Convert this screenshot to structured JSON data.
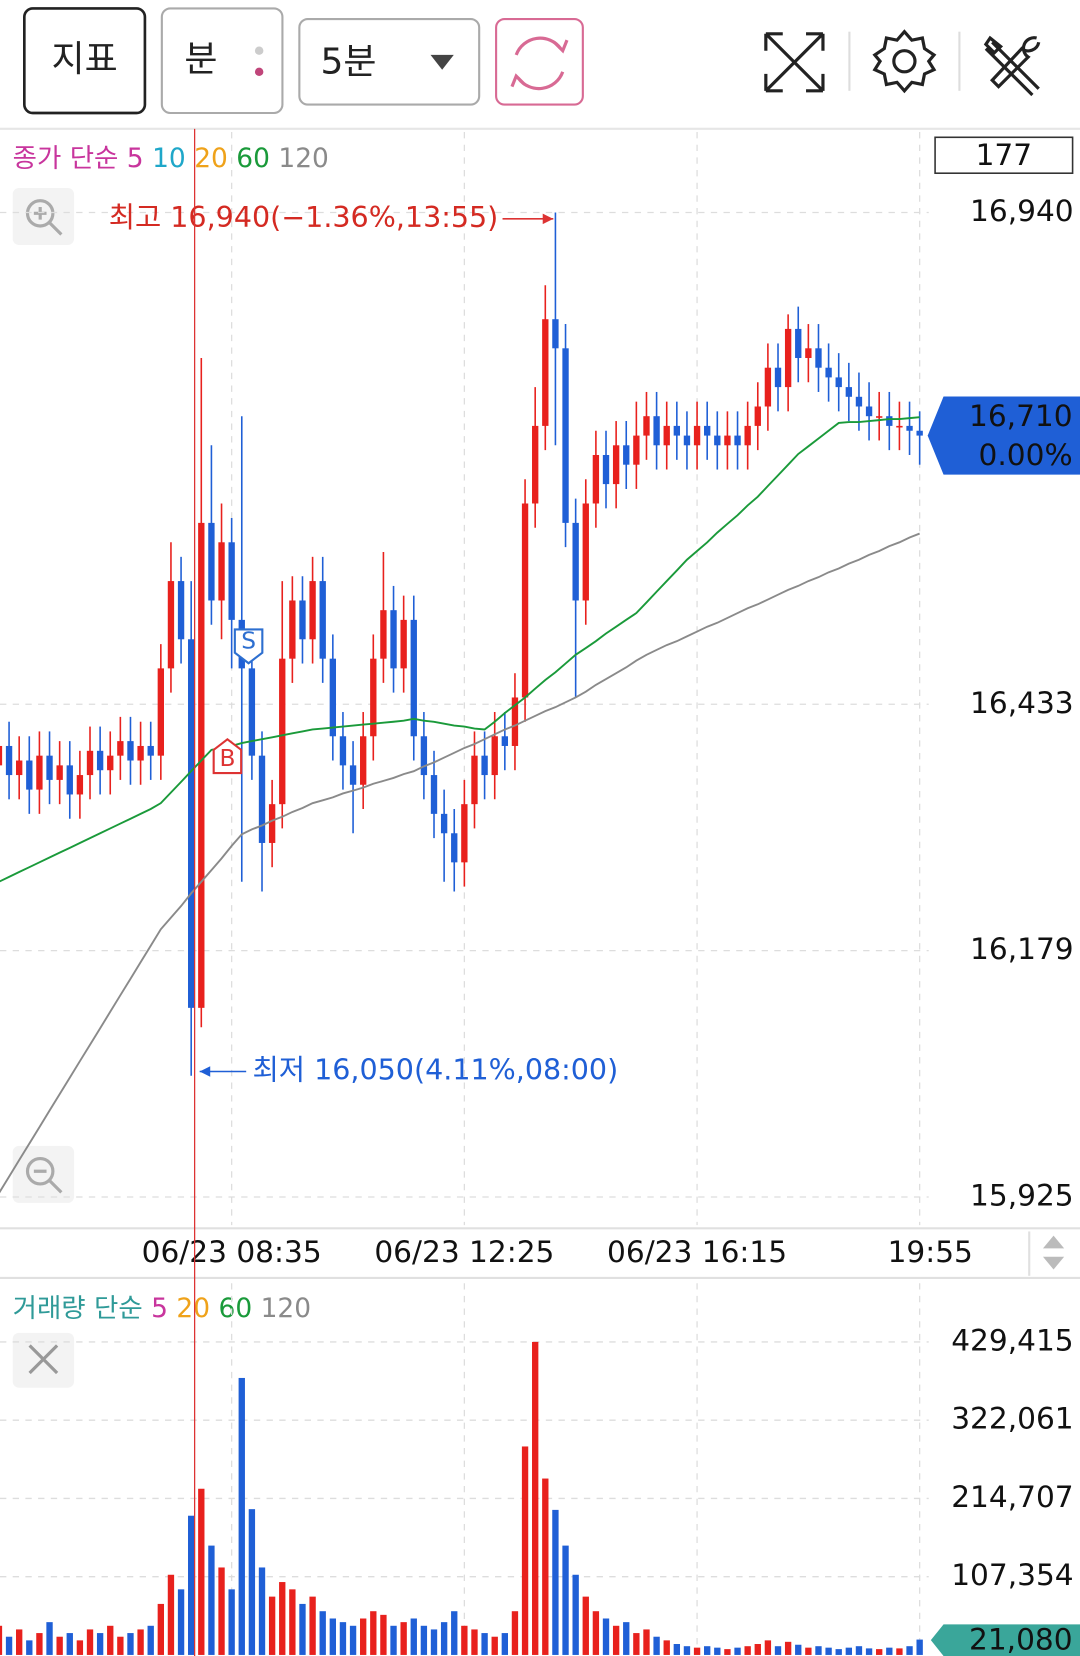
{
  "toolbar": {
    "indicator": "지표",
    "unit": "분",
    "interval": "5분"
  },
  "chart_data": [
    {
      "type": "candlestick",
      "legend": {
        "title": "종가 단순",
        "title_color": "#c8359d",
        "items": [
          {
            "label": "5",
            "color": "#c8359d"
          },
          {
            "label": "10",
            "color": "#1fa7c9"
          },
          {
            "label": "20",
            "color": "#efa21a"
          },
          {
            "label": "60",
            "color": "#1a9a3a"
          },
          {
            "label": "120",
            "color": "#8a8a8a"
          }
        ]
      },
      "count_label": "177",
      "high_label": "최고 16,940(−1.36%,13:55)",
      "low_label": "최저 16,050(4.11%,08:00)",
      "sell_marker": "S",
      "buy_marker": "B",
      "last_price": {
        "value": 16710,
        "label": "16,710"
      },
      "change_label": "0.00%",
      "up_color": "#e8211d",
      "down_color": "#1f5fd6",
      "categories": [
        null,
        null,
        null,
        null,
        null,
        null,
        null,
        null,
        null,
        null,
        null,
        null,
        null,
        null,
        null,
        null,
        null,
        null,
        null,
        null,
        null,
        null,
        null,
        "06/23 08:35",
        null,
        null,
        null,
        null,
        null,
        null,
        null,
        null,
        null,
        null,
        null,
        null,
        null,
        null,
        null,
        null,
        null,
        null,
        null,
        null,
        null,
        null,
        "06/23 12:25",
        null,
        null,
        null,
        null,
        null,
        null,
        null,
        null,
        null,
        null,
        null,
        null,
        null,
        null,
        null,
        null,
        null,
        null,
        null,
        null,
        null,
        null,
        "06/23 16:15",
        null,
        null,
        null,
        null,
        null,
        null,
        null,
        null,
        null,
        null,
        null,
        null,
        null,
        null,
        null,
        null,
        null,
        null,
        null,
        null,
        null,
        "19:55"
      ],
      "open": [
        16370,
        16390,
        16360,
        16375,
        16345,
        16380,
        16355,
        16370,
        16340,
        16360,
        16385,
        16365,
        16380,
        16395,
        16375,
        16390,
        16380,
        16470,
        16560,
        16500,
        16120,
        16620,
        16540,
        16600,
        16520,
        16470,
        16380,
        16290,
        16330,
        16480,
        16540,
        16500,
        16560,
        16480,
        16400,
        16370,
        16350,
        16400,
        16480,
        16530,
        16470,
        16520,
        16400,
        16360,
        16320,
        16300,
        16270,
        16330,
        16380,
        16360,
        16400,
        16390,
        16440,
        16640,
        16720,
        16830,
        16800,
        16620,
        16540,
        16640,
        16690,
        16660,
        16700,
        16680,
        16710,
        16730,
        16700,
        16720,
        16710,
        16700,
        16720,
        16710,
        16700,
        16710,
        16700,
        16720,
        16740,
        16780,
        16760,
        16820,
        16790,
        16800,
        16780,
        16770,
        16760,
        16750,
        16740,
        16730,
        16730,
        16720,
        16720,
        16715
      ],
      "high": [
        16415,
        16415,
        16400,
        16400,
        16405,
        16405,
        16395,
        16395,
        16385,
        16410,
        16410,
        16405,
        16420,
        16420,
        16415,
        16415,
        16495,
        16600,
        16585,
        16560,
        16790,
        16700,
        16640,
        16625,
        16730,
        16495,
        16405,
        16355,
        16560,
        16565,
        16565,
        16585,
        16585,
        16505,
        16425,
        16395,
        16425,
        16505,
        16590,
        16555,
        16545,
        16545,
        16425,
        16385,
        16345,
        16325,
        16355,
        16405,
        16405,
        16425,
        16425,
        16465,
        16665,
        16760,
        16865,
        16940,
        16825,
        16645,
        16665,
        16715,
        16715,
        16725,
        16725,
        16745,
        16755,
        16755,
        16745,
        16745,
        16735,
        16745,
        16745,
        16735,
        16735,
        16735,
        16745,
        16765,
        16805,
        16805,
        16835,
        16843,
        16825,
        16825,
        16805,
        16795,
        16785,
        16775,
        16765,
        16755,
        16755,
        16745,
        16745,
        16735
      ],
      "low": [
        16345,
        16335,
        16335,
        16320,
        16320,
        16330,
        16330,
        16315,
        16315,
        16335,
        16340,
        16340,
        16355,
        16350,
        16350,
        16355,
        16355,
        16445,
        16475,
        16050,
        16100,
        16515,
        16500,
        16470,
        16250,
        16355,
        16240,
        16265,
        16305,
        16455,
        16475,
        16475,
        16455,
        16375,
        16345,
        16300,
        16325,
        16375,
        16455,
        16445,
        16445,
        16375,
        16335,
        16295,
        16250,
        16240,
        16245,
        16305,
        16335,
        16335,
        16365,
        16365,
        16415,
        16615,
        16695,
        16700,
        16595,
        16440,
        16515,
        16615,
        16635,
        16635,
        16655,
        16655,
        16685,
        16675,
        16675,
        16685,
        16675,
        16675,
        16685,
        16675,
        16675,
        16675,
        16675,
        16695,
        16715,
        16735,
        16735,
        16765,
        16765,
        16755,
        16745,
        16735,
        16725,
        16715,
        16705,
        16705,
        16695,
        16695,
        16690,
        16680
      ],
      "close": [
        16390,
        16360,
        16375,
        16345,
        16380,
        16355,
        16370,
        16340,
        16360,
        16385,
        16365,
        16380,
        16395,
        16375,
        16390,
        16380,
        16470,
        16560,
        16500,
        16120,
        16620,
        16540,
        16600,
        16520,
        16470,
        16380,
        16290,
        16330,
        16480,
        16540,
        16500,
        16560,
        16480,
        16400,
        16370,
        16350,
        16400,
        16480,
        16530,
        16470,
        16520,
        16400,
        16360,
        16320,
        16300,
        16270,
        16330,
        16380,
        16360,
        16400,
        16390,
        16440,
        16640,
        16720,
        16830,
        16800,
        16620,
        16540,
        16640,
        16690,
        16660,
        16700,
        16680,
        16710,
        16730,
        16700,
        16720,
        16710,
        16700,
        16720,
        16710,
        16700,
        16710,
        16700,
        16720,
        16740,
        16780,
        16760,
        16820,
        16790,
        16800,
        16780,
        16770,
        16760,
        16750,
        16740,
        16730,
        16730,
        16720,
        16720,
        16715,
        16710
      ],
      "series": [
        {
          "color": "#1a9a3a",
          "values": [
            16250,
            16255,
            16260,
            16265,
            16270,
            16275,
            16280,
            16285,
            16290,
            16295,
            16300,
            16305,
            16310,
            16315,
            16320,
            16325,
            16331,
            16342,
            16353,
            16364,
            16375,
            16386,
            16388,
            16390,
            16393,
            16395,
            16397,
            16399,
            16401,
            16403,
            16405,
            16407,
            16408,
            16409,
            16410,
            16411,
            16412,
            16413,
            16414,
            16415,
            16416,
            16418,
            16416,
            16415,
            16413,
            16411,
            16410,
            16408,
            16407,
            16415,
            16424,
            16432,
            16440,
            16449,
            16458,
            16466,
            16475,
            16484,
            16491,
            16498,
            16506,
            16513,
            16520,
            16527,
            16538,
            16549,
            16560,
            16571,
            16582,
            16591,
            16600,
            16610,
            16619,
            16628,
            16638,
            16647,
            16658,
            16669,
            16680,
            16691,
            16699,
            16707,
            16715,
            16723,
            16724,
            16724,
            16725,
            16726,
            16727,
            16727,
            16728,
            16729
          ]
        },
        {
          "color": "#8a8a8a",
          "values": [
            15929,
            15946,
            15963,
            15980,
            15997,
            16014,
            16031,
            16048,
            16065,
            16082,
            16099,
            16116,
            16133,
            16150,
            16167,
            16184,
            16201,
            16213,
            16225,
            16238,
            16250,
            16262,
            16274,
            16287,
            16299,
            16304,
            16308,
            16313,
            16317,
            16322,
            16326,
            16331,
            16334,
            16337,
            16341,
            16344,
            16347,
            16351,
            16354,
            16357,
            16361,
            16364,
            16369,
            16373,
            16378,
            16383,
            16388,
            16392,
            16397,
            16402,
            16407,
            16411,
            16416,
            16421,
            16426,
            16430,
            16435,
            16440,
            16446,
            16453,
            16459,
            16465,
            16471,
            16478,
            16484,
            16489,
            16494,
            16498,
            16503,
            16508,
            16513,
            16517,
            16522,
            16527,
            16532,
            16536,
            16541,
            16546,
            16551,
            16555,
            16560,
            16564,
            16569,
            16573,
            16578,
            16582,
            16587,
            16591,
            16596,
            16600,
            16605,
            16609
          ]
        }
      ],
      "ylim": [
        15896,
        17023
      ],
      "yticks": [
        {
          "value": 16940,
          "label": "16,940"
        },
        {
          "value": 16433,
          "label": "16,433"
        },
        {
          "value": 16179,
          "label": "16,179"
        },
        {
          "value": 15925,
          "label": "15,925"
        }
      ],
      "grid": true
    },
    {
      "type": "bar",
      "legend": {
        "title": "거래량 단순",
        "title_color": "#2f9a98",
        "items": [
          {
            "label": "5",
            "color": "#c8359d"
          },
          {
            "label": "20",
            "color": "#efa21a"
          },
          {
            "label": "60",
            "color": "#1a9a3a"
          },
          {
            "label": "120",
            "color": "#8a8a8a"
          }
        ]
      },
      "values": [
        40000,
        25000,
        35000,
        20000,
        30000,
        45000,
        25000,
        30000,
        20000,
        35000,
        30000,
        40000,
        25000,
        30000,
        35000,
        40000,
        70000,
        110000,
        90000,
        191000,
        228000,
        150000,
        120000,
        90000,
        380000,
        200000,
        120000,
        80000,
        100000,
        90000,
        70000,
        80000,
        60000,
        50000,
        45000,
        40000,
        50000,
        60000,
        55000,
        40000,
        45000,
        50000,
        40000,
        35000,
        45000,
        60000,
        40000,
        35000,
        30000,
        25000,
        30000,
        60000,
        286000,
        429415,
        242000,
        199000,
        150000,
        110000,
        80000,
        60000,
        50000,
        40000,
        45000,
        30000,
        35000,
        25000,
        20000,
        15000,
        12000,
        10000,
        12000,
        10000,
        8000,
        10000,
        12000,
        15000,
        20000,
        12000,
        18000,
        14000,
        10000,
        12000,
        10000,
        8000,
        10000,
        12000,
        9000,
        8000,
        10000,
        9000,
        12000,
        21080
      ],
      "last_label": "21,080",
      "ylim": [
        0,
        510000
      ],
      "yticks": [
        {
          "value": 429415,
          "label": "429,415"
        },
        {
          "value": 322061,
          "label": "322,061"
        },
        {
          "value": 214707,
          "label": "214,707"
        },
        {
          "value": 107354,
          "label": "107,354"
        }
      ],
      "grid": true
    }
  ]
}
